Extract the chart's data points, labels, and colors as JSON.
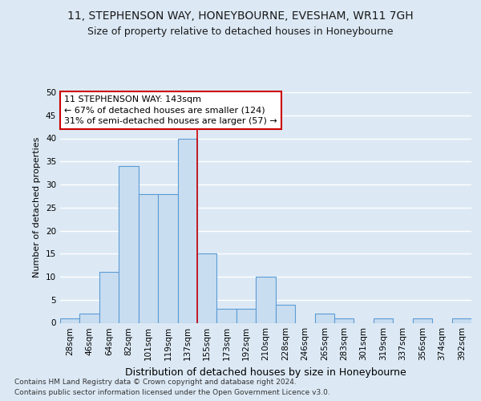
{
  "title_line1": "11, STEPHENSON WAY, HONEYBOURNE, EVESHAM, WR11 7GH",
  "title_line2": "Size of property relative to detached houses in Honeybourne",
  "xlabel": "Distribution of detached houses by size in Honeybourne",
  "ylabel": "Number of detached properties",
  "categories": [
    "28sqm",
    "46sqm",
    "64sqm",
    "82sqm",
    "101sqm",
    "119sqm",
    "137sqm",
    "155sqm",
    "173sqm",
    "192sqm",
    "210sqm",
    "228sqm",
    "246sqm",
    "265sqm",
    "283sqm",
    "301sqm",
    "319sqm",
    "337sqm",
    "356sqm",
    "374sqm",
    "392sqm"
  ],
  "values": [
    1,
    2,
    11,
    34,
    28,
    28,
    40,
    15,
    3,
    3,
    10,
    4,
    0,
    2,
    1,
    0,
    1,
    0,
    1,
    0,
    1
  ],
  "property_bar_index": 6,
  "property_line_x": 7,
  "bar_color": "#c9ddf0",
  "bar_edge_color": "#5b9bd5",
  "property_line_color": "#cc0000",
  "bg_color": "#dce9f5",
  "plot_bg_color": "#dce9f5",
  "grid_color": "#ffffff",
  "annotation_text": "11 STEPHENSON WAY: 143sqm\n← 67% of detached houses are smaller (124)\n31% of semi-detached houses are larger (57) →",
  "annotation_box_facecolor": "#ffffff",
  "annotation_box_edgecolor": "#cc0000",
  "footer_line1": "Contains HM Land Registry data © Crown copyright and database right 2024.",
  "footer_line2": "Contains public sector information licensed under the Open Government Licence v3.0.",
  "ylim": [
    0,
    50
  ],
  "yticks": [
    0,
    5,
    10,
    15,
    20,
    25,
    30,
    35,
    40,
    45,
    50
  ],
  "title1_fontsize": 10,
  "title2_fontsize": 9,
  "ylabel_fontsize": 8,
  "xlabel_fontsize": 9,
  "tick_fontsize": 7.5,
  "footer_fontsize": 6.5,
  "ann_fontsize": 8
}
